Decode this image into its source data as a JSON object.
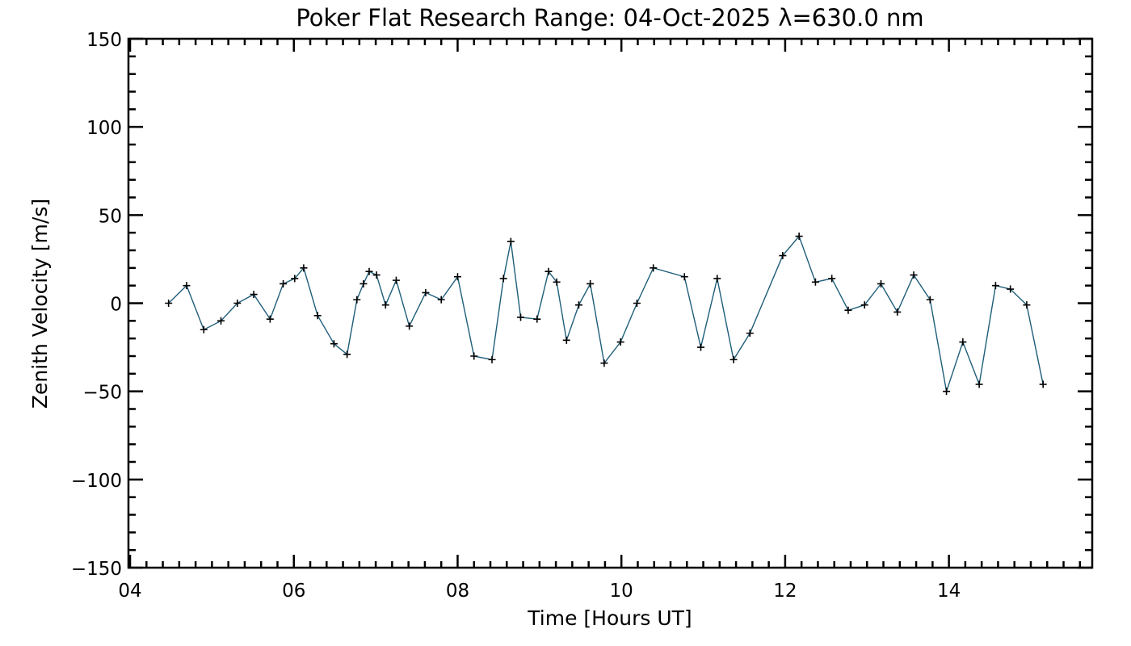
{
  "chart_data": {
    "type": "line",
    "title": "Poker Flat Research Range: 04-Oct-2025 λ=630.0 nm",
    "xlabel": "Time [Hours UT]",
    "ylabel": "Zenith Velocity [m/s]",
    "xlim": [
      3.98,
      15.75
    ],
    "ylim": [
      -150,
      150
    ],
    "x_ticks": [
      4,
      6,
      8,
      10,
      12,
      14
    ],
    "x_tick_labels": [
      "04",
      "06",
      "08",
      "10",
      "12",
      "14"
    ],
    "y_ticks": [
      -150,
      -100,
      -50,
      0,
      50,
      100,
      150
    ],
    "y_tick_labels": [
      "−150",
      "−100",
      "−50",
      "0",
      "50",
      "100",
      "150"
    ],
    "line_color": "#1f5e7a",
    "marker": "+",
    "series": [
      {
        "name": "Zenith Velocity",
        "x": [
          4.47,
          4.69,
          4.9,
          5.11,
          5.31,
          5.51,
          5.71,
          5.87,
          6.01,
          6.12,
          6.29,
          6.49,
          6.65,
          6.77,
          6.85,
          6.92,
          7.01,
          7.12,
          7.25,
          7.41,
          7.61,
          7.8,
          8.0,
          8.2,
          8.42,
          8.56,
          8.65,
          8.77,
          8.97,
          9.11,
          9.21,
          9.33,
          9.48,
          9.62,
          9.79,
          9.99,
          10.19,
          10.39,
          10.77,
          10.97,
          11.17,
          11.37,
          11.57,
          11.97,
          12.17,
          12.37,
          12.57,
          12.77,
          12.97,
          13.17,
          13.37,
          13.57,
          13.77,
          13.97,
          14.17,
          14.37,
          14.57,
          14.75,
          14.95,
          15.15
        ],
        "y": [
          0,
          10,
          -15,
          -10,
          0,
          5,
          -9,
          11,
          14,
          20,
          -7,
          -23,
          -29,
          2,
          11,
          18,
          16,
          -1,
          13,
          -13,
          6,
          2,
          15,
          -30,
          -32,
          14,
          35,
          -8,
          -9,
          18,
          12,
          -21,
          -1,
          11,
          -34,
          -22,
          0,
          20,
          15,
          -25,
          14,
          -32,
          -17,
          27,
          38,
          12,
          14,
          -4,
          -1,
          11,
          -5,
          16,
          2,
          -50,
          -22,
          -46,
          10,
          8,
          -1,
          -46
        ]
      }
    ]
  }
}
